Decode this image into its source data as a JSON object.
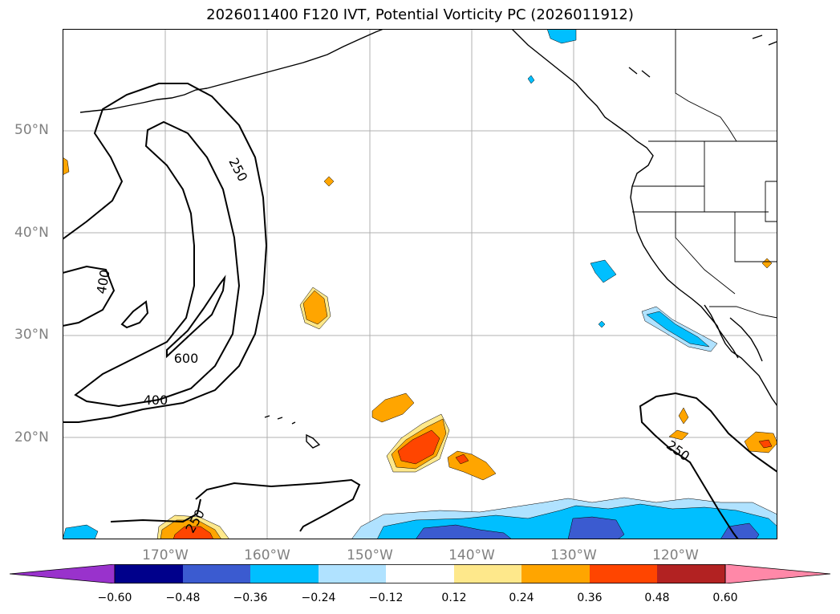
{
  "title": "2026011400 F120 IVT, Potential Vorticity PC (2026011912)",
  "map": {
    "lat_labels": [
      "50°N",
      "40°N",
      "30°N",
      "20°N"
    ],
    "lon_labels": [
      "170°W",
      "160°W",
      "150°W",
      "140°W",
      "130°W",
      "120°W"
    ],
    "contour_labels": [
      "250",
      "400",
      "600",
      "400",
      "250",
      "250"
    ],
    "fill_colors": {
      "neg_strong": "#3b5bd0",
      "neg_mid": "#00bfff",
      "neg_weak": "#b0e2ff",
      "pos_weak": "#fee88b",
      "pos_mid": "#ffa500",
      "pos_strong": "#ff4500",
      "pos_deep": "#b22222"
    }
  },
  "colorbar": {
    "colors": [
      "#9932cc",
      "#00008b",
      "#3b5bd0",
      "#00bfff",
      "#b0e2ff",
      "#ffffff",
      "#fee88b",
      "#ffa500",
      "#ff4500",
      "#b22222",
      "#ff88a8"
    ],
    "tick_labels": [
      "−0.60",
      "−0.48",
      "−0.36",
      "−0.24",
      "−0.12",
      "0.12",
      "0.24",
      "0.36",
      "0.48",
      "0.60"
    ]
  }
}
